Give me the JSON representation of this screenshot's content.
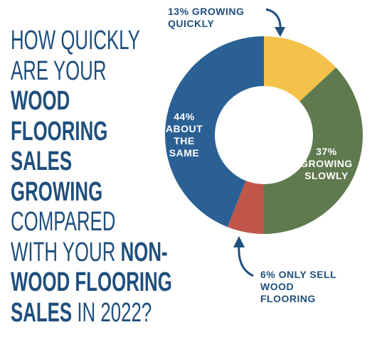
{
  "chart_data": {
    "type": "donut",
    "title_lines": [
      [
        {
          "text": "HOW QUICKLY",
          "bold": false
        }
      ],
      [
        {
          "text": "ARE YOUR",
          "bold": false
        }
      ],
      [
        {
          "text": "WOOD",
          "bold": true
        }
      ],
      [
        {
          "text": "FLOORING",
          "bold": true
        }
      ],
      [
        {
          "text": "SALES",
          "bold": true
        }
      ],
      [
        {
          "text": "GROWING",
          "bold": true
        }
      ],
      [
        {
          "text": "COMPARED",
          "bold": false
        }
      ],
      [
        {
          "text": "WITH YOUR",
          "bold": false
        },
        {
          "text": "NON-",
          "bold": true
        }
      ],
      [
        {
          "text": "WOOD FLOORING",
          "bold": true
        }
      ],
      [
        {
          "text": "SALES",
          "bold": true
        },
        {
          "text": "IN 2022?",
          "bold": false
        }
      ]
    ],
    "categories": [
      "GROWING QUICKLY",
      "GROWING SLOWLY",
      "ONLY SELL WOOD FLOORING",
      "ABOUT THE SAME"
    ],
    "values": [
      13,
      37,
      6,
      44
    ],
    "value_labels": [
      "13%",
      "37%",
      "6%",
      "44%"
    ],
    "colors": [
      "#f4c24a",
      "#5f7a4f",
      "#c0564a",
      "#2b6095"
    ]
  }
}
